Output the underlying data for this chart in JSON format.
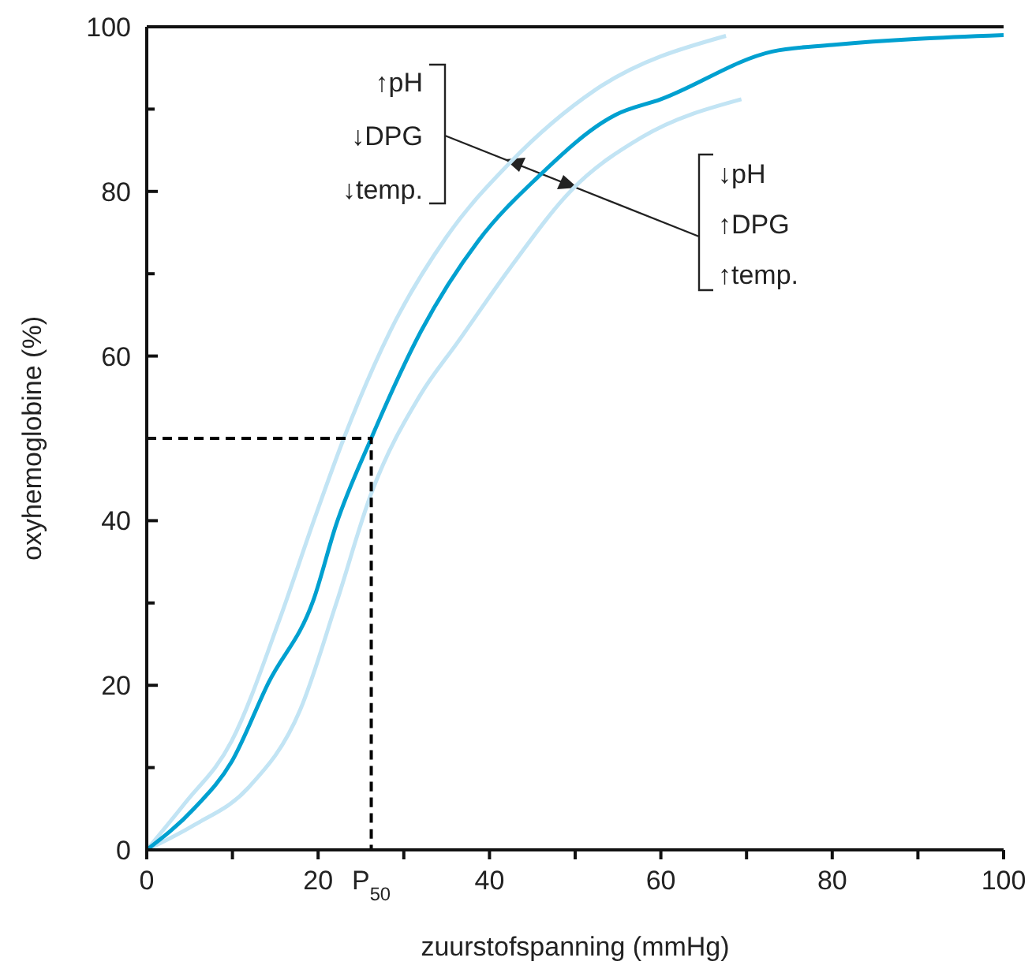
{
  "chart_data": {
    "type": "line",
    "xlabel": "zuurstofspanning (mmHg)",
    "ylabel": "oxyhemoglobine (%)",
    "xlim": [
      0,
      100
    ],
    "ylim": [
      0,
      100
    ],
    "xticks": [
      0,
      {
        "value": 10,
        "label": null
      },
      20,
      {
        "value": 30,
        "label": null
      },
      40,
      {
        "value": 50,
        "label": null
      },
      60,
      {
        "value": 70,
        "label": null
      },
      80,
      {
        "value": 90,
        "label": null
      },
      100
    ],
    "yticks": [
      0,
      {
        "value": 10,
        "label": null
      },
      20,
      {
        "value": 30,
        "label": null
      },
      40,
      {
        "value": 50,
        "label": null
      },
      60,
      {
        "value": 70,
        "label": null
      },
      80,
      {
        "value": 90,
        "label": null
      },
      100
    ],
    "grid": false,
    "marker": "none",
    "series": [
      {
        "color": "#c2e4f4",
        "x": [
          0,
          4.4,
          9.9,
          15.5,
          19.7,
          23,
          28.4,
          35,
          42.4,
          52.3,
          67.6
        ],
        "values": [
          0,
          5.6,
          13.2,
          28,
          40.6,
          50,
          63,
          74.5,
          83.5,
          92.3,
          98.9
        ]
      },
      {
        "color": "#c2e4f4",
        "x": [
          0,
          5.5,
          11.8,
          17.9,
          22.1,
          26.2,
          32,
          36.3,
          42.4,
          49.7,
          57.8,
          69.4
        ],
        "values": [
          0,
          3,
          7.5,
          17,
          29.9,
          43.3,
          55.4,
          61.7,
          70.7,
          80.3,
          86.6,
          91.2
        ]
      },
      {
        "color": "#00a0d0",
        "x": [
          0,
          5.5,
          9.9,
          14.2,
          19.5,
          22.1,
          26.2,
          32,
          38.7,
          45.5,
          54.7,
          60,
          73,
          80,
          100
        ],
        "values": [
          0,
          5,
          10.7,
          20.3,
          30.5,
          39.5,
          50,
          63,
          74,
          81.6,
          89.3,
          91.2,
          97,
          97.8,
          99
        ]
      },
      {
        "color": "#000000",
        "line_style": "dashed",
        "x": [
          0,
          26.2,
          26.2
        ],
        "values": [
          50,
          50,
          0
        ]
      }
    ],
    "annotations": [
      "↑pH",
      "↓DPG",
      "↓temp.",
      "↓pH",
      "↑DPG",
      "↑temp.",
      {
        "text": "P$_{50}$",
        "x": 26.2,
        "y": 0
      }
    ]
  }
}
